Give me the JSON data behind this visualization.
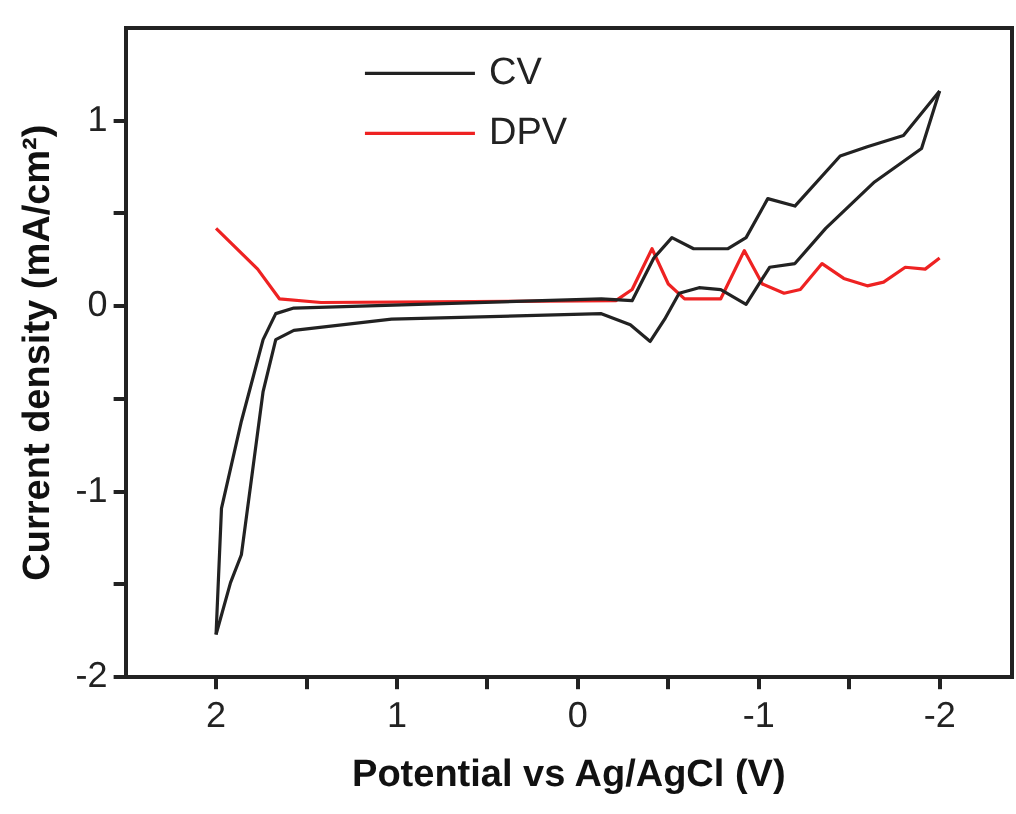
{
  "chart_data": {
    "type": "line",
    "xlabel": "Potential vs Ag/AgCl (V)",
    "ylabel": "Current density (mA/cm²)",
    "xlim": [
      2.5,
      -2.4
    ],
    "ylim": [
      -2,
      1.5
    ],
    "xticks": [
      2,
      {
        "value": 1.5,
        "label": null
      },
      1,
      {
        "value": 0.5,
        "label": null
      },
      0,
      {
        "value": -0.5,
        "label": null
      },
      -1,
      {
        "value": -1.5,
        "label": null
      },
      -2
    ],
    "yticks": [
      -2,
      {
        "value": -1.5,
        "label": null
      },
      -1,
      {
        "value": -0.5,
        "label": null
      },
      0,
      {
        "value": 0.5,
        "label": null
      },
      1
    ],
    "grid": false,
    "legend": "top",
    "marker": "none",
    "line_style": "solid",
    "series": [
      {
        "name": "CV",
        "color": "#222222",
        "x": [
          2.0,
          1.97,
          1.86,
          1.74,
          1.67,
          1.57,
          -0.13,
          -0.3,
          -0.42,
          -0.52,
          -0.64,
          -0.83,
          -0.93,
          -1.05,
          -1.2,
          -1.45,
          -1.6,
          -1.8,
          -2.0
        ],
        "values": [
          -1.77,
          -1.09,
          -0.62,
          -0.18,
          -0.04,
          -0.01,
          0.04,
          0.03,
          0.26,
          0.37,
          0.31,
          0.31,
          0.37,
          0.58,
          0.54,
          0.81,
          0.86,
          0.92,
          1.16
        ]
      },
      {
        "color": "#222222",
        "x": [
          -2.0,
          -1.9,
          -1.64,
          -1.37,
          -1.2,
          -1.06,
          -0.93,
          -0.79,
          -0.67,
          -0.56,
          -0.48,
          -0.4,
          -0.29,
          -0.13,
          1.03,
          1.57,
          1.67,
          1.74,
          1.8,
          1.86,
          1.92,
          2.0
        ],
        "values": [
          1.16,
          0.85,
          0.67,
          0.42,
          0.23,
          0.21,
          0.01,
          0.09,
          0.1,
          0.07,
          -0.07,
          -0.19,
          -0.1,
          -0.04,
          -0.07,
          -0.13,
          -0.18,
          -0.46,
          -0.9,
          -1.34,
          -1.49,
          -1.77
        ]
      },
      {
        "name": "DPV",
        "color": "#ee2222",
        "x": [
          2.0,
          1.77,
          1.65,
          1.42,
          -0.21,
          -0.3,
          -0.41,
          -0.5,
          -0.59,
          -0.79,
          -0.92,
          -1.02,
          -1.14,
          -1.23,
          -1.35,
          -1.47,
          -1.6,
          -1.69,
          -1.81,
          -1.92,
          -2.0
        ],
        "values": [
          0.42,
          0.2,
          0.04,
          0.02,
          0.03,
          0.09,
          0.31,
          0.12,
          0.04,
          0.04,
          0.3,
          0.12,
          0.07,
          0.09,
          0.23,
          0.15,
          0.11,
          0.13,
          0.21,
          0.2,
          0.26
        ]
      }
    ]
  }
}
